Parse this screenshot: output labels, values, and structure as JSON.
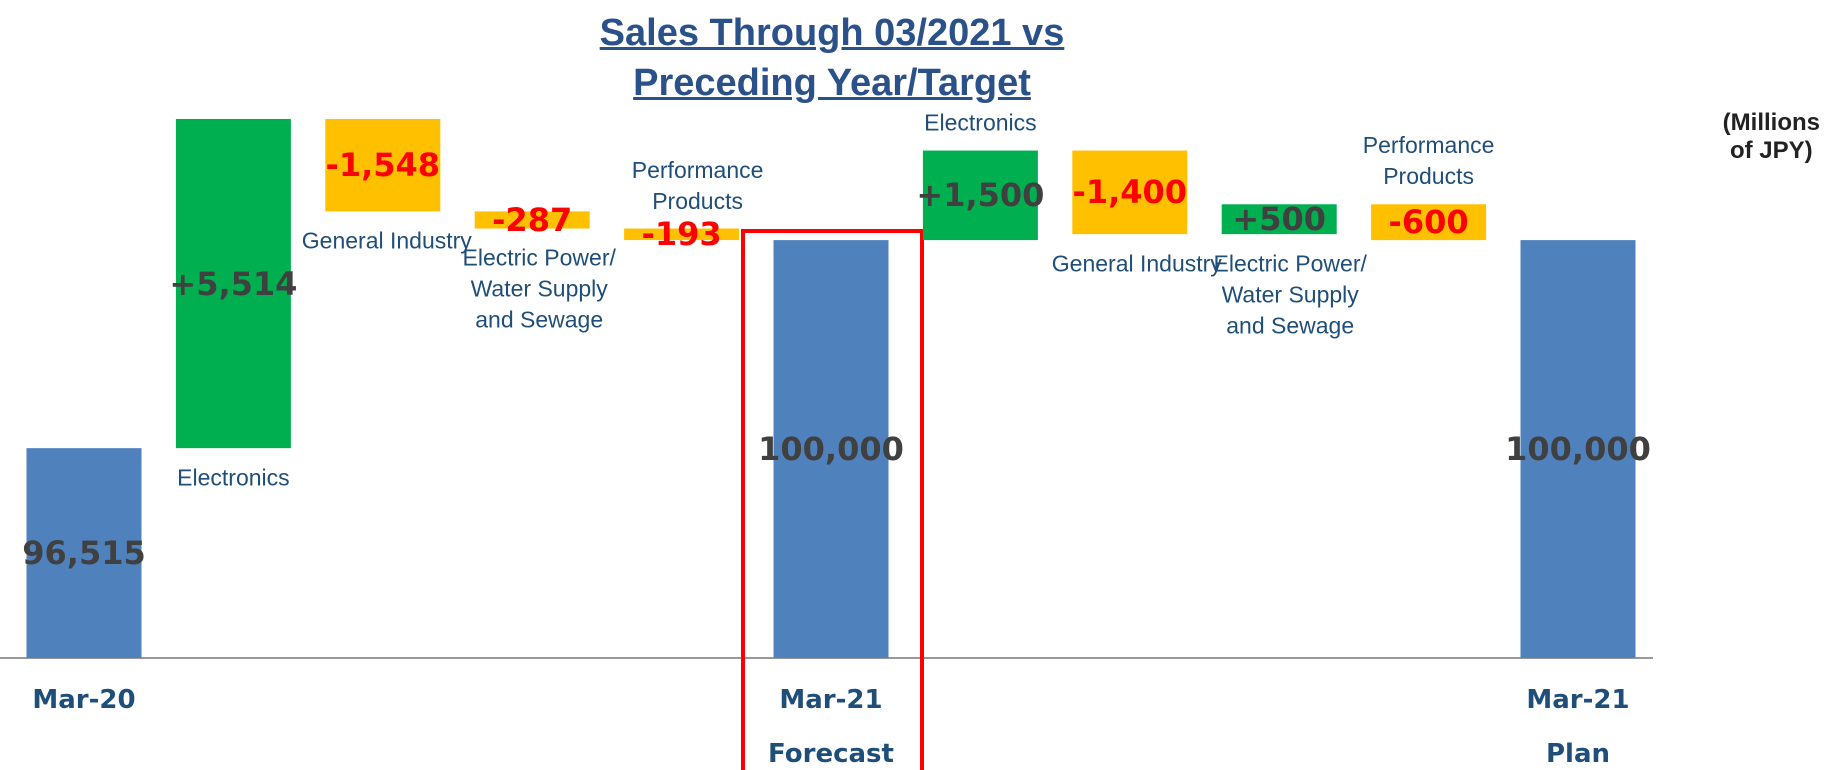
{
  "chart_data": {
    "type": "waterfall",
    "title": "Sales Through 03/2021 vs\nPreceding Year/Target",
    "unit_label": "(Millions of JPY)",
    "categories": [
      "Mar-20",
      null,
      null,
      null,
      null,
      "Mar-21\nForecast",
      null,
      null,
      null,
      null,
      "Mar-21\nPlan"
    ],
    "segment_names": [
      null,
      "Electronics",
      "General Industry",
      "Electric Power/\nWater Supply\nand Sewage",
      "Performance\nProducts",
      null,
      "Electronics",
      "General Industry",
      "Electric Power/\nWater Supply\nand Sewage",
      "Performance\nProducts",
      null
    ],
    "measures": [
      "total",
      "relative",
      "relative",
      "relative",
      "relative",
      "total",
      "relative",
      "relative",
      "relative",
      "relative",
      "total"
    ],
    "values": [
      96515,
      5514,
      -1548,
      -287,
      -193,
      100000,
      1500,
      -1400,
      500,
      -600,
      100000
    ],
    "value_labels": [
      "96,515",
      "+5,514",
      "-1,548",
      "-287",
      "-193",
      "100,000",
      "+1,500",
      "-1,400",
      "+500",
      "-600",
      "100,000"
    ],
    "colors": {
      "total": "#4f81bd",
      "increase": "#00b050",
      "decrease": "#ffc000"
    },
    "ylim": [
      93000,
      103000
    ]
  }
}
